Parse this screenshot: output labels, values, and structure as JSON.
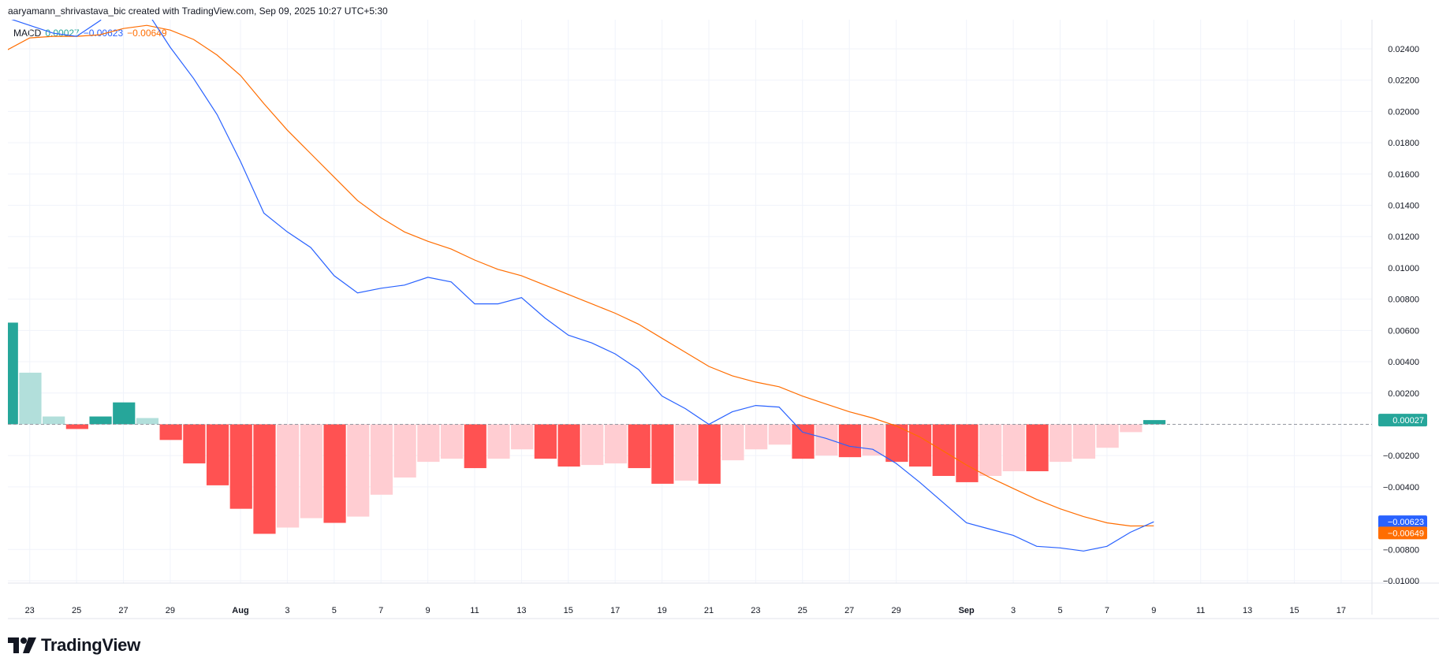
{
  "header": {
    "text": "aaryamann_shrivastava_bic created with TradingView.com, Sep 09, 2025 10:27 UTC+5:30"
  },
  "legend": {
    "name": "MACD",
    "histogram_value": "0.00027",
    "macd_value": "−0.00623",
    "signal_value": "−0.00649"
  },
  "brand": {
    "name": "TradingView",
    "icon": "tradingview-logo-icon"
  },
  "colors": {
    "macd_line": "#2962ff",
    "signal_line": "#ff6d00",
    "hist_pos_strong": "#26a69a",
    "hist_pos_weak": "#b2dfdb",
    "hist_neg_strong": "#ff5252",
    "hist_neg_weak": "#ffcdd2",
    "grid": "#f0f3fa",
    "text": "#131722"
  },
  "chart_data": {
    "type": "macd",
    "ylim": [
      -0.0105,
      0.0255
    ],
    "y_ticks": [
      "0.02400",
      "0.02200",
      "0.02000",
      "0.01800",
      "0.01600",
      "0.01400",
      "0.01200",
      "0.01000",
      "0.00800",
      "0.00600",
      "0.00400",
      "0.00200",
      "−0.00200",
      "−0.00400",
      "−0.00800",
      "−0.01000"
    ],
    "y_tick_values": [
      0.024,
      0.022,
      0.02,
      0.018,
      0.016,
      0.014,
      0.012,
      0.01,
      0.008,
      0.006,
      0.004,
      0.002,
      -0.002,
      -0.004,
      -0.008,
      -0.01
    ],
    "x_ticks": [
      {
        "label": "23",
        "i": 1
      },
      {
        "label": "25",
        "i": 3
      },
      {
        "label": "27",
        "i": 5
      },
      {
        "label": "29",
        "i": 7
      },
      {
        "label": "Aug",
        "i": 10
      },
      {
        "label": "3",
        "i": 12
      },
      {
        "label": "5",
        "i": 14
      },
      {
        "label": "7",
        "i": 16
      },
      {
        "label": "9",
        "i": 18
      },
      {
        "label": "11",
        "i": 20
      },
      {
        "label": "13",
        "i": 22
      },
      {
        "label": "15",
        "i": 24
      },
      {
        "label": "17",
        "i": 26
      },
      {
        "label": "19",
        "i": 28
      },
      {
        "label": "21",
        "i": 30
      },
      {
        "label": "23",
        "i": 32
      },
      {
        "label": "25",
        "i": 34
      },
      {
        "label": "27",
        "i": 36
      },
      {
        "label": "29",
        "i": 38
      },
      {
        "label": "Sep",
        "i": 41
      },
      {
        "label": "3",
        "i": 43
      },
      {
        "label": "5",
        "i": 45
      },
      {
        "label": "7",
        "i": 47
      },
      {
        "label": "9",
        "i": 49
      },
      {
        "label": "11",
        "i": 51
      },
      {
        "label": "13",
        "i": 53
      },
      {
        "label": "15",
        "i": 55
      },
      {
        "label": "17",
        "i": 57
      }
    ],
    "histogram": [
      0.0065,
      0.0033,
      0.0005,
      -0.0003,
      0.0005,
      0.0014,
      0.0004,
      -0.001,
      -0.0025,
      -0.0039,
      -0.0054,
      -0.007,
      -0.0066,
      -0.006,
      -0.0063,
      -0.0059,
      -0.0045,
      -0.0034,
      -0.0024,
      -0.0022,
      -0.0028,
      -0.0022,
      -0.0016,
      -0.0022,
      -0.0027,
      -0.0026,
      -0.0025,
      -0.0028,
      -0.0038,
      -0.0036,
      -0.0038,
      -0.0023,
      -0.0016,
      -0.0013,
      -0.0022,
      -0.002,
      -0.0021,
      -0.002,
      -0.0024,
      -0.0027,
      -0.0033,
      -0.0037,
      -0.0033,
      -0.003,
      -0.003,
      -0.0024,
      -0.0022,
      -0.0015,
      -0.0005,
      0.00027
    ],
    "macd": [
      0.026,
      0.0255,
      0.025,
      0.0248,
      0.0258,
      0.0275,
      0.0264,
      0.0241,
      0.0221,
      0.0198,
      0.0168,
      0.0135,
      0.0123,
      0.0113,
      0.0095,
      0.0084,
      0.0087,
      0.0089,
      0.0094,
      0.0091,
      0.0077,
      0.0077,
      0.0081,
      0.0068,
      0.0057,
      0.0052,
      0.0045,
      0.0035,
      0.0018,
      0.001,
      0.0,
      0.0008,
      0.0012,
      0.0011,
      -0.0005,
      -0.0009,
      -0.0014,
      -0.0016,
      -0.0025,
      -0.0037,
      -0.005,
      -0.0063,
      -0.0067,
      -0.0071,
      -0.0078,
      -0.0079,
      -0.0081,
      -0.0078,
      -0.0069,
      -0.00623
    ],
    "signal": [
      0.0239,
      0.0247,
      0.0248,
      0.0248,
      0.0249,
      0.0253,
      0.0255,
      0.0252,
      0.0246,
      0.0236,
      0.0223,
      0.0205,
      0.0188,
      0.0173,
      0.0158,
      0.0143,
      0.0132,
      0.0123,
      0.0117,
      0.0112,
      0.0105,
      0.0099,
      0.0095,
      0.0089,
      0.0083,
      0.0077,
      0.0071,
      0.0064,
      0.0055,
      0.0046,
      0.0037,
      0.0031,
      0.0027,
      0.0024,
      0.0018,
      0.0013,
      0.0008,
      0.0004,
      -0.0001,
      -0.0008,
      -0.0017,
      -0.0026,
      -0.0034,
      -0.0041,
      -0.0048,
      -0.0054,
      -0.0059,
      -0.0063,
      -0.0065,
      -0.00649
    ],
    "last_labels": {
      "histogram": "0.00027",
      "macd": "−0.00623",
      "signal": "−0.00649"
    }
  }
}
